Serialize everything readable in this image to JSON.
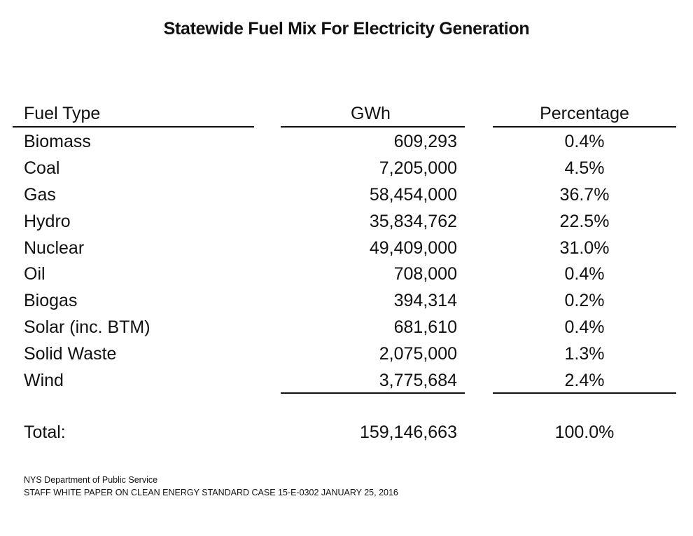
{
  "title": "Statewide Fuel Mix For Electricity Generation",
  "headers": {
    "fuel": "Fuel Type",
    "gwh": "GWh",
    "pct": "Percentage"
  },
  "rows": [
    {
      "fuel": "Biomass",
      "gwh": "609,293",
      "pct": "0.4%"
    },
    {
      "fuel": "Coal",
      "gwh": "7,205,000",
      "pct": "4.5%"
    },
    {
      "fuel": "Gas",
      "gwh": "58,454,000",
      "pct": "36.7%"
    },
    {
      "fuel": "Hydro",
      "gwh": "35,834,762",
      "pct": "22.5%"
    },
    {
      "fuel": "Nuclear",
      "gwh": "49,409,000",
      "pct": "31.0%"
    },
    {
      "fuel": "Oil",
      "gwh": "708,000",
      "pct": "0.4%"
    },
    {
      "fuel": "Biogas",
      "gwh": "394,314",
      "pct": "0.2%"
    },
    {
      "fuel": "Solar (inc. BTM)",
      "gwh": "681,610",
      "pct": "0.4%"
    },
    {
      "fuel": "Solid Waste",
      "gwh": "2,075,000",
      "pct": "1.3%"
    },
    {
      "fuel": "Wind",
      "gwh": "3,775,684",
      "pct": "2.4%"
    }
  ],
  "total": {
    "label": "Total:",
    "gwh": "159,146,663",
    "pct": "100.0%"
  },
  "source": {
    "line1": "NYS Department of Public Service",
    "line2": "STAFF WHITE PAPER ON CLEAN ENERGY STANDARD CASE 15-E-0302 JANUARY 25, 2016"
  }
}
